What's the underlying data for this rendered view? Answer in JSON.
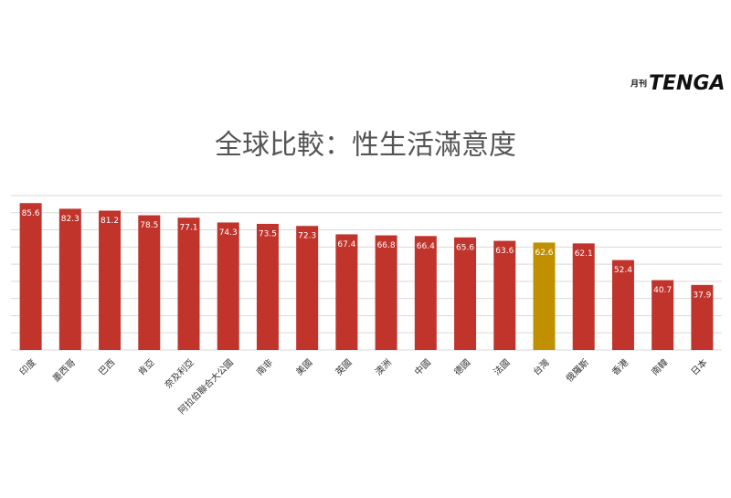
{
  "chart_data": {
    "type": "bar",
    "title": "全球比較：性生活滿意度",
    "logo": {
      "small": "月刊",
      "text": "TENGA"
    },
    "categories": [
      "印度",
      "墨西哥",
      "巴西",
      "肯亞",
      "奈及利亞",
      "阿拉伯聯合大公國",
      "南非",
      "美國",
      "英國",
      "澳洲",
      "中國",
      "德國",
      "法國",
      "台灣",
      "俄羅斯",
      "香港",
      "南韓",
      "日本"
    ],
    "values": [
      85.6,
      82.3,
      81.2,
      78.5,
      77.1,
      74.3,
      73.5,
      72.3,
      67.4,
      66.8,
      66.4,
      65.6,
      63.6,
      62.6,
      62.1,
      52.4,
      40.7,
      37.9
    ],
    "colors": [
      "#c0342c",
      "#c0342c",
      "#c0342c",
      "#c0342c",
      "#c0342c",
      "#c0342c",
      "#c0342c",
      "#c0342c",
      "#c0342c",
      "#c0342c",
      "#c0342c",
      "#c0342c",
      "#c0342c",
      "#c09000",
      "#c0342c",
      "#c0342c",
      "#c0342c",
      "#c0342c"
    ],
    "ylim": [
      0,
      90
    ],
    "yticks": [
      0,
      10,
      20,
      30,
      40,
      50,
      60,
      70,
      80,
      90
    ],
    "grid": true
  }
}
